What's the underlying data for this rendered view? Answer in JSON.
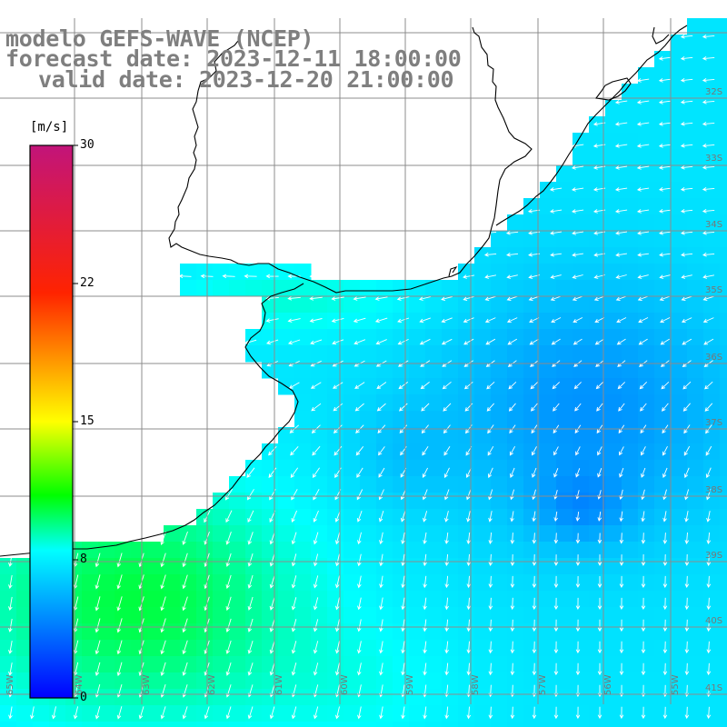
{
  "title": {
    "line1": "modelo GEFS-WAVE (NCEP)",
    "line2": "forecast date: 2023-12-11 18:00:00",
    "line3": "valid date: 2023-12-20 21:00:00"
  },
  "colorbar": {
    "unit": "[m/s]",
    "ticks": [
      "30",
      "22",
      "15",
      "8",
      "0"
    ],
    "tick_values": [
      30,
      22,
      15,
      8,
      0
    ],
    "colors": [
      "#c2147a",
      "#ff0000",
      "#ff8a00",
      "#ffff00",
      "#00ff00",
      "#00ffff",
      "#007fff",
      "#0000ff"
    ]
  },
  "map": {
    "lat_labels": [
      "32S",
      "33S",
      "34S",
      "35S",
      "36S",
      "37S",
      "38S",
      "39S",
      "40S",
      "41S"
    ],
    "lon_labels": [
      "65W",
      "64W",
      "63W",
      "62W",
      "61W",
      "60W",
      "59W",
      "58W",
      "57W",
      "56W",
      "55W"
    ],
    "field_range_ms": [
      5,
      13
    ],
    "grid": "on",
    "colors": {
      "coast": "#000000",
      "grid": "#808080",
      "arrows": "#ffffff",
      "label": "#777777"
    }
  }
}
